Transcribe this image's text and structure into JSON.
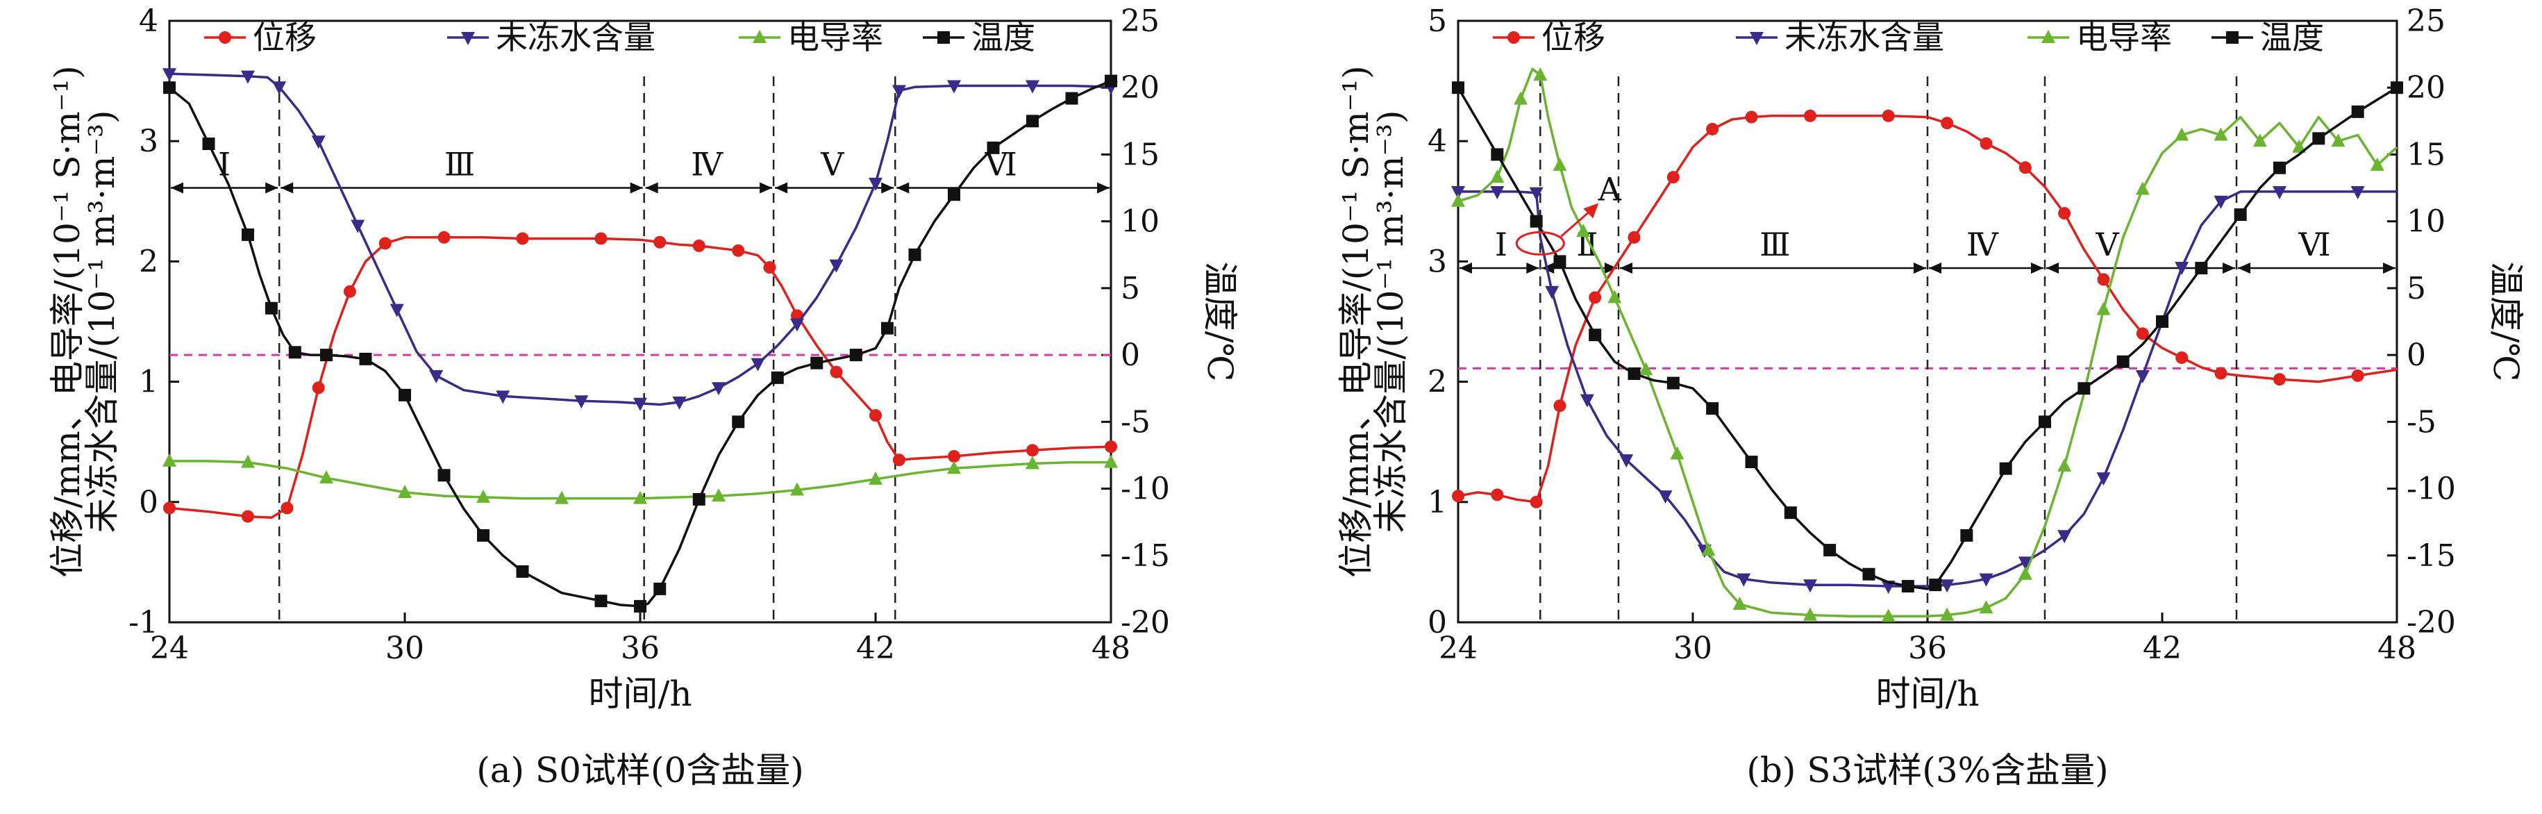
{
  "chart_data": [
    {
      "type": "line",
      "caption": "(a) S0试样(0含盐量)",
      "xlabel": "时间/h",
      "ylabel_left_lines": [
        "位移/mm、电导率/(10⁻¹ S·m⁻¹)",
        "未冻水含量/(10⁻¹ m³·m⁻³)"
      ],
      "ylabel_right": "温度/℃",
      "xlim": [
        24,
        48
      ],
      "xticks": [
        24,
        30,
        36,
        42,
        48
      ],
      "ylim_left": [
        -1,
        4
      ],
      "yticks_left": [
        -1,
        0,
        1,
        2,
        3,
        4
      ],
      "ylim_right": [
        -20,
        25
      ],
      "yticks_right": [
        -20,
        -15,
        -10,
        -5,
        0,
        5,
        10,
        15,
        20,
        25
      ],
      "freeze_line_temp": 0,
      "phase_boundaries": [
        26.8,
        36.1,
        39.4,
        42.5
      ],
      "phase_arrow_y_right": 12.5,
      "regions": [
        {
          "label": "Ⅰ",
          "x": 25.4
        },
        {
          "label": "Ⅲ",
          "x": 31.4
        },
        {
          "label": "Ⅳ",
          "x": 37.7
        },
        {
          "label": "Ⅴ",
          "x": 40.9
        },
        {
          "label": "Ⅵ",
          "x": 45.2
        }
      ],
      "series": [
        {
          "name": "位移",
          "axis": "left",
          "color": "#e0201b",
          "marker": "circle",
          "x": [
            24,
            25,
            26,
            26.6,
            27,
            27.4,
            27.8,
            28.2,
            28.6,
            29,
            29.5,
            30,
            31,
            32,
            33,
            34,
            35,
            36,
            36.5,
            37,
            37.5,
            38,
            38.5,
            39,
            39.3,
            39.6,
            40,
            40.5,
            41,
            41.5,
            42,
            42.3,
            42.6,
            43,
            44,
            45,
            46,
            47,
            48
          ],
          "y": [
            -0.05,
            -0.08,
            -0.12,
            -0.13,
            -0.05,
            0.4,
            0.95,
            1.4,
            1.75,
            2.0,
            2.15,
            2.2,
            2.2,
            2.2,
            2.19,
            2.19,
            2.19,
            2.18,
            2.16,
            2.14,
            2.13,
            2.11,
            2.09,
            2.05,
            1.95,
            1.8,
            1.55,
            1.3,
            1.08,
            0.9,
            0.72,
            0.5,
            0.35,
            0.36,
            0.38,
            0.41,
            0.43,
            0.45,
            0.46
          ]
        },
        {
          "name": "未冻水含量",
          "axis": "left",
          "color": "#3b2a8a",
          "marker": "tri-down",
          "x": [
            24,
            25,
            26,
            26.5,
            26.8,
            27.3,
            27.8,
            28.3,
            28.8,
            29.3,
            29.8,
            30.3,
            30.8,
            31.5,
            32.5,
            33.5,
            34.5,
            35.5,
            36,
            36.5,
            37,
            37.5,
            38,
            38.5,
            39,
            39.5,
            40,
            40.5,
            41,
            41.5,
            42,
            42.3,
            42.6,
            43,
            44,
            45,
            46,
            47,
            48
          ],
          "y": [
            3.56,
            3.55,
            3.54,
            3.53,
            3.45,
            3.25,
            3.0,
            2.65,
            2.3,
            1.95,
            1.6,
            1.25,
            1.05,
            0.93,
            0.88,
            0.86,
            0.84,
            0.83,
            0.82,
            0.81,
            0.83,
            0.88,
            0.95,
            1.04,
            1.15,
            1.3,
            1.48,
            1.7,
            1.97,
            2.28,
            2.65,
            3.0,
            3.42,
            3.45,
            3.46,
            3.46,
            3.46,
            3.46,
            3.45
          ]
        },
        {
          "name": "电导率",
          "axis": "left",
          "color": "#6ab52f",
          "marker": "tri-up",
          "x": [
            24,
            25,
            26,
            27,
            28,
            29,
            30,
            31,
            32,
            33,
            34,
            35,
            36,
            37,
            38,
            39,
            40,
            41,
            42,
            43,
            44,
            45,
            46,
            47,
            48
          ],
          "y": [
            0.34,
            0.34,
            0.33,
            0.28,
            0.2,
            0.14,
            0.08,
            0.05,
            0.04,
            0.03,
            0.03,
            0.03,
            0.03,
            0.04,
            0.05,
            0.07,
            0.1,
            0.14,
            0.19,
            0.24,
            0.28,
            0.3,
            0.32,
            0.33,
            0.33
          ]
        },
        {
          "name": "温度",
          "axis": "right",
          "color": "#111111",
          "marker": "square",
          "x": [
            24,
            24.5,
            25,
            25.5,
            26,
            26.3,
            26.6,
            26.9,
            27.2,
            27.6,
            28,
            28.5,
            29,
            29.5,
            30,
            30.5,
            31,
            31.5,
            32,
            32.5,
            33,
            34,
            35,
            35.5,
            36,
            36.2,
            36.5,
            37,
            37.5,
            38,
            38.5,
            39,
            39.5,
            40,
            40.5,
            41,
            41.5,
            42,
            42.3,
            42.6,
            43,
            43.5,
            44,
            44.5,
            45,
            45.5,
            46,
            46.5,
            47,
            47.5,
            48
          ],
          "y": [
            20,
            18.8,
            15.8,
            12.8,
            9,
            6,
            3.5,
            1.5,
            0.2,
            0,
            0,
            -0.1,
            -0.3,
            -1.2,
            -3,
            -6,
            -9,
            -11.5,
            -13.5,
            -15,
            -16.2,
            -17.8,
            -18.4,
            -18.7,
            -18.8,
            -18.6,
            -17.5,
            -14.5,
            -10.8,
            -7.5,
            -5,
            -3,
            -1.7,
            -1,
            -0.6,
            -0.3,
            0,
            0.5,
            2,
            5,
            7.5,
            10,
            12,
            14,
            15.5,
            16.5,
            17.5,
            18.4,
            19.2,
            19.9,
            20.5
          ]
        }
      ],
      "legend": [
        "位移",
        "未冻水含量",
        "电导率",
        "温度"
      ]
    },
    {
      "type": "line",
      "caption": "(b) S3试样(3%含盐量)",
      "xlabel": "时间/h",
      "ylabel_left_lines": [
        "位移/mm、电导率/(10⁻¹ S·m⁻¹)",
        "未冻水含量/(10⁻¹ m³·m⁻³)"
      ],
      "ylabel_right": "温度/℃",
      "xlim": [
        24,
        48
      ],
      "xticks": [
        24,
        30,
        36,
        42,
        48
      ],
      "ylim_left": [
        0,
        5
      ],
      "yticks_left": [
        0,
        1,
        2,
        3,
        4,
        5
      ],
      "ylim_right": [
        -20,
        25
      ],
      "yticks_right": [
        -20,
        -15,
        -10,
        -5,
        0,
        5,
        10,
        15,
        20,
        25
      ],
      "freeze_line_temp": -1,
      "phase_boundaries": [
        26.1,
        28.1,
        36.0,
        39.0,
        43.9
      ],
      "phase_arrow_y_right": 6.5,
      "regions": [
        {
          "label": "Ⅰ",
          "x": 25.1
        },
        {
          "label": "Ⅱ",
          "x": 27.3
        },
        {
          "label": "Ⅲ",
          "x": 32.1
        },
        {
          "label": "Ⅳ",
          "x": 37.4
        },
        {
          "label": "Ⅴ",
          "x": 40.6
        },
        {
          "label": "Ⅵ",
          "x": 45.9
        }
      ],
      "annotation": {
        "label": "A",
        "x": 26.1,
        "y_left": 3.15
      },
      "series": [
        {
          "name": "位移",
          "axis": "left",
          "color": "#e0201b",
          "marker": "circle",
          "x": [
            24,
            24.5,
            25,
            25.5,
            26,
            26.3,
            26.6,
            27,
            27.5,
            28,
            28.5,
            29,
            29.5,
            30,
            30.5,
            31,
            31.5,
            32,
            33,
            34,
            35,
            36,
            36.5,
            37,
            37.5,
            38,
            38.5,
            39,
            39.5,
            40,
            40.5,
            41,
            41.5,
            42,
            42.5,
            43,
            43.5,
            44,
            45,
            46,
            47,
            48
          ],
          "y": [
            1.05,
            1.08,
            1.06,
            1.02,
            1.0,
            1.3,
            1.8,
            2.3,
            2.7,
            2.95,
            3.2,
            3.45,
            3.7,
            3.95,
            4.1,
            4.18,
            4.2,
            4.21,
            4.21,
            4.21,
            4.21,
            4.2,
            4.15,
            4.08,
            3.98,
            3.9,
            3.78,
            3.62,
            3.4,
            3.1,
            2.85,
            2.6,
            2.4,
            2.28,
            2.2,
            2.12,
            2.07,
            2.05,
            2.02,
            2.0,
            2.05,
            2.1
          ]
        },
        {
          "name": "未冻水含量",
          "axis": "left",
          "color": "#3b2a8a",
          "marker": "tri-down",
          "x": [
            24,
            24.5,
            25,
            25.5,
            26,
            26.1,
            26.4,
            26.8,
            27.3,
            27.8,
            28.3,
            28.8,
            29.3,
            29.8,
            30.3,
            30.8,
            31.3,
            32,
            33,
            34,
            35,
            36,
            36.5,
            37,
            37.5,
            38,
            38.5,
            39,
            39.5,
            40,
            40.5,
            41,
            41.5,
            42,
            42.5,
            43,
            43.5,
            44,
            45,
            46,
            47,
            48
          ],
          "y": [
            3.58,
            3.58,
            3.58,
            3.58,
            3.57,
            3.2,
            2.75,
            2.3,
            1.85,
            1.55,
            1.35,
            1.2,
            1.05,
            0.85,
            0.6,
            0.42,
            0.36,
            0.33,
            0.31,
            0.31,
            0.3,
            0.3,
            0.31,
            0.33,
            0.36,
            0.42,
            0.5,
            0.6,
            0.72,
            0.9,
            1.2,
            1.6,
            2.05,
            2.5,
            2.95,
            3.3,
            3.5,
            3.58,
            3.58,
            3.58,
            3.58,
            3.58
          ]
        },
        {
          "name": "电导率",
          "axis": "left",
          "color": "#6ab52f",
          "marker": "tri-up",
          "x": [
            24,
            24.5,
            25,
            25.3,
            25.6,
            25.9,
            26.1,
            26.3,
            26.6,
            26.9,
            27.2,
            27.6,
            28,
            28.4,
            28.8,
            29.2,
            29.6,
            30,
            30.4,
            30.8,
            31.2,
            32,
            33,
            34,
            35,
            36,
            36.5,
            37,
            37.5,
            38,
            38.5,
            39,
            39.5,
            40,
            40.5,
            41,
            41.5,
            42,
            42.5,
            43,
            43.5,
            44,
            44.5,
            45,
            45.5,
            46,
            46.5,
            47,
            47.5,
            48
          ],
          "y": [
            3.5,
            3.55,
            3.7,
            3.95,
            4.35,
            4.6,
            4.55,
            4.2,
            3.8,
            3.45,
            3.25,
            3.0,
            2.7,
            2.4,
            2.1,
            1.75,
            1.4,
            1.0,
            0.6,
            0.3,
            0.15,
            0.08,
            0.06,
            0.05,
            0.05,
            0.05,
            0.06,
            0.08,
            0.12,
            0.2,
            0.4,
            0.8,
            1.3,
            1.9,
            2.6,
            3.2,
            3.6,
            3.9,
            4.05,
            4.1,
            4.05,
            4.2,
            4.0,
            4.15,
            3.95,
            4.2,
            4.0,
            4.05,
            3.8,
            3.95
          ]
        },
        {
          "name": "温度",
          "axis": "right",
          "color": "#111111",
          "marker": "square",
          "x": [
            24,
            24.5,
            25,
            25.5,
            26,
            26.3,
            26.6,
            27,
            27.5,
            28,
            28.5,
            29,
            29.5,
            30,
            30.5,
            31,
            31.5,
            32,
            32.5,
            33,
            33.5,
            34,
            34.5,
            35,
            35.5,
            36,
            36.2,
            36.6,
            37,
            37.5,
            38,
            38.5,
            39,
            39.5,
            40,
            40.5,
            41,
            41.5,
            42,
            42.5,
            43,
            43.5,
            44,
            44.5,
            45,
            45.5,
            46,
            46.5,
            47,
            47.5,
            48
          ],
          "y": [
            20,
            17.5,
            15,
            12.5,
            10,
            8.5,
            7,
            4.2,
            1.5,
            -0.5,
            -1.4,
            -1.9,
            -2.1,
            -2.5,
            -4,
            -6,
            -8,
            -10,
            -11.8,
            -13.3,
            -14.6,
            -15.6,
            -16.4,
            -17,
            -17.3,
            -17.5,
            -17.2,
            -15.5,
            -13.5,
            -11,
            -8.5,
            -6.5,
            -5,
            -3.5,
            -2.5,
            -1.5,
            -0.5,
            0.8,
            2.5,
            4.5,
            6.5,
            8.5,
            10.5,
            12.5,
            14,
            15,
            16.2,
            17.2,
            18.2,
            19.1,
            20
          ]
        }
      ],
      "legend": [
        "位移",
        "未冻水含量",
        "电导率",
        "温度"
      ]
    }
  ]
}
